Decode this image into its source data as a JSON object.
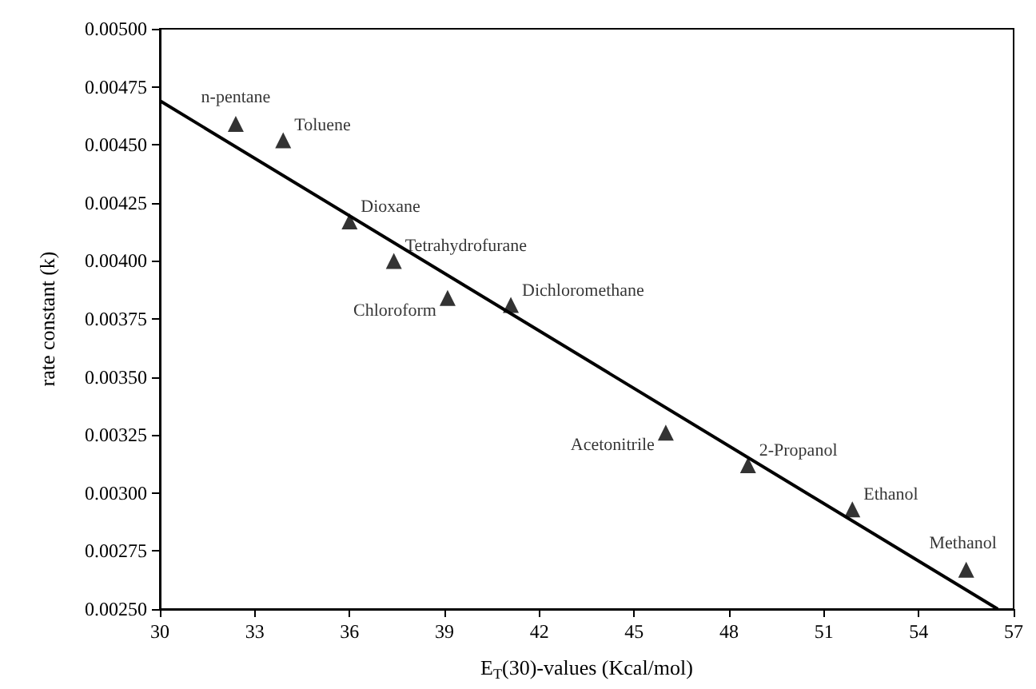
{
  "chart_data": {
    "type": "scatter",
    "xlabel": "E$_{T}$(30)-values (Kcal/mol)",
    "ylabel": "rate constant (k)",
    "marker": "triangle",
    "grid": false,
    "xlim": [
      30,
      57
    ],
    "xticks": [
      30,
      33,
      36,
      39,
      42,
      45,
      48,
      51,
      54,
      57
    ],
    "ylim": [
      0.0025,
      0.005
    ],
    "yticks": [
      {
        "value": 0.0025,
        "label": "0.00250"
      },
      {
        "value": 0.00275,
        "label": "0.00275"
      },
      {
        "value": 0.003,
        "label": "0.00300"
      },
      {
        "value": 0.00325,
        "label": "0.00325"
      },
      {
        "value": 0.0035,
        "label": "0.00350"
      },
      {
        "value": 0.00375,
        "label": "0.00375"
      },
      {
        "value": 0.004,
        "label": "0.00400"
      },
      {
        "value": 0.00425,
        "label": "0.00425"
      },
      {
        "value": 0.0045,
        "label": "0.00450"
      },
      {
        "value": 0.00475,
        "label": "0.00475"
      },
      {
        "value": 0.005,
        "label": "0.00500"
      }
    ],
    "x": [
      32.4,
      33.9,
      36.0,
      37.4,
      39.1,
      41.1,
      46.0,
      48.6,
      51.9,
      55.5
    ],
    "series": [
      {
        "type": "scatter",
        "color": "#000000",
        "values": [
          0.00459,
          0.00452,
          0.00417,
          0.004,
          0.00384,
          0.00381,
          0.00326,
          0.00312,
          0.00293,
          0.00267
        ]
      },
      {
        "type": "line",
        "color": "#000000",
        "x": [
          30,
          56.5
        ],
        "values": [
          0.00469,
          0.0025
        ],
        "marker": "none",
        "line_style": "solid"
      }
    ],
    "annotations": [
      {
        "text": "n-pentane",
        "x": 32.4,
        "y": 0.00459
      },
      {
        "text": "Toluene",
        "x": 33.9,
        "y": 0.00452
      },
      {
        "text": "Dioxane",
        "x": 36.0,
        "y": 0.00417
      },
      {
        "text": "Tetrahydrofurane",
        "x": 37.4,
        "y": 0.004
      },
      {
        "text": "Chloroform",
        "x": 39.1,
        "y": 0.00384
      },
      {
        "text": "Dichloromethane",
        "x": 41.1,
        "y": 0.00381
      },
      {
        "text": "Acetonitrile",
        "x": 46.0,
        "y": 0.00326
      },
      {
        "text": "2-Propanol",
        "x": 48.6,
        "y": 0.00312
      },
      {
        "text": "Ethanol",
        "x": 51.9,
        "y": 0.00293
      },
      {
        "text": "Methanol",
        "x": 55.5,
        "y": 0.00267
      }
    ]
  }
}
